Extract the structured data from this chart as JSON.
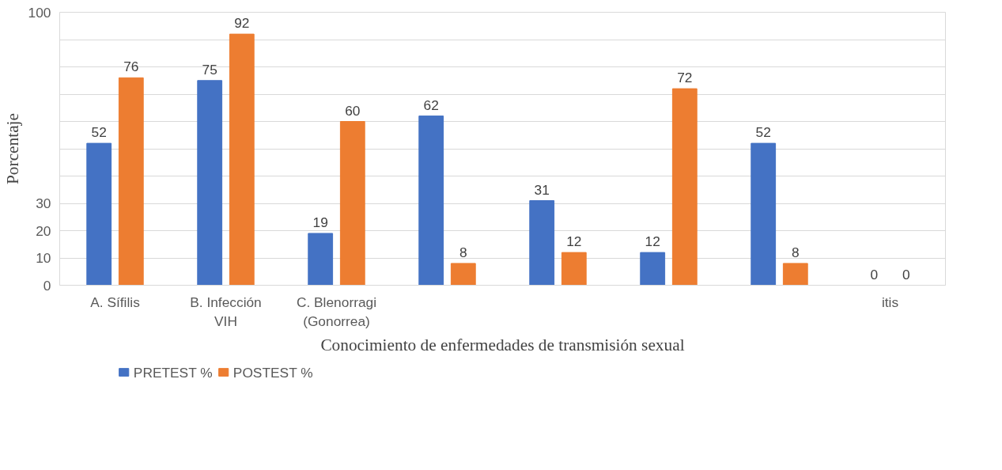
{
  "chart_data": {
    "type": "bar",
    "xlabel": "Conocimiento de enfermedades de transmisión sexual",
    "ylabel": "Porcentaje",
    "categories": [
      "A. Sífilis",
      "B. Infección VIH",
      "C. Blenorragi (Gonorrea)",
      null,
      null,
      null,
      null,
      "itis"
    ],
    "series": [
      {
        "name": "PRETEST %",
        "color": "#4472c4",
        "values": [
          52,
          75,
          19,
          62,
          31,
          12,
          52,
          0
        ]
      },
      {
        "name": "POSTEST %",
        "color": "#ed7d31",
        "values": [
          76,
          92,
          60,
          8,
          12,
          72,
          8,
          0
        ]
      }
    ],
    "ylim": [
      0,
      100
    ],
    "yticks": [
      0,
      10,
      20,
      30,
      {
        "value": 40,
        "label": null
      },
      {
        "value": 50,
        "label": null
      },
      {
        "value": 60,
        "label": null
      },
      {
        "value": 70,
        "label": null
      },
      {
        "value": 80,
        "label": null
      },
      {
        "value": 90,
        "label": null
      },
      100
    ],
    "grid": "y",
    "legend": "bottom left",
    "data_labels": true
  }
}
